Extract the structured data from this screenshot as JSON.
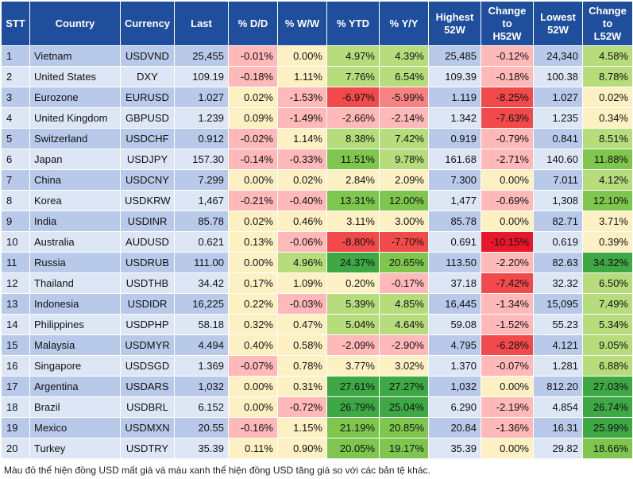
{
  "headers": [
    "STT",
    "Country",
    "Currency",
    "Last",
    "% D/D",
    "% W/W",
    "% YTD",
    "% Y/Y",
    "Highest\n52W",
    "Change\nto\nH52W",
    "Lowest\n52W",
    "Change\nto\nL52W"
  ],
  "colors": {
    "header_bg": "#1f4e9c",
    "row_odd": "#b8c9ea",
    "row_even": "#dce6f5",
    "neg_light": "#ffb9b9",
    "neg_mid": "#f88282",
    "neg_strong": "#f24a4a",
    "neg_deep": "#e8182a",
    "pos_light": "#fdf1c4",
    "pos_mid": "#b7dc7c",
    "pos_strong": "#7fc64e",
    "pos_deep": "#3ea844"
  },
  "rows": [
    [
      "1",
      "Vietnam",
      "USDVND",
      "25,455",
      "-0.01%",
      "0.00%",
      "4.97%",
      "4.39%",
      "25,485",
      "-0.12%",
      "24,340",
      "4.58%"
    ],
    [
      "2",
      "United States",
      "DXY",
      "109.19",
      "-0.18%",
      "1.11%",
      "7.76%",
      "6.54%",
      "109.39",
      "-0.18%",
      "100.38",
      "8.78%"
    ],
    [
      "3",
      "Eurozone",
      "EURUSD",
      "1.027",
      "0.02%",
      "-1.53%",
      "-6.97%",
      "-5.99%",
      "1.119",
      "-8.25%",
      "1.027",
      "0.02%"
    ],
    [
      "4",
      "United Kingdom",
      "GBPUSD",
      "1.239",
      "0.09%",
      "-1.49%",
      "-2.66%",
      "-2.14%",
      "1.342",
      "-7.63%",
      "1.235",
      "0.34%"
    ],
    [
      "5",
      "Switzerland",
      "USDCHF",
      "0.912",
      "-0.02%",
      "1.14%",
      "8.38%",
      "7.42%",
      "0.919",
      "-0.79%",
      "0.841",
      "8.51%"
    ],
    [
      "6",
      "Japan",
      "USDJPY",
      "157.30",
      "-0.14%",
      "-0.33%",
      "11.51%",
      "9.78%",
      "161.68",
      "-2.71%",
      "140.60",
      "11.88%"
    ],
    [
      "7",
      "China",
      "USDCNY",
      "7.299",
      "0.00%",
      "0.02%",
      "2.84%",
      "2.09%",
      "7.300",
      "0.00%",
      "7.011",
      "4.12%"
    ],
    [
      "8",
      "Korea",
      "USDKRW",
      "1,467",
      "-0.21%",
      "-0.40%",
      "13.31%",
      "12.00%",
      "1,477",
      "-0.69%",
      "1,308",
      "12.10%"
    ],
    [
      "9",
      "India",
      "USDINR",
      "85.78",
      "0.02%",
      "0.46%",
      "3.11%",
      "3.00%",
      "85.78",
      "0.00%",
      "82.71",
      "3.71%"
    ],
    [
      "10",
      "Australia",
      "AUDUSD",
      "0.621",
      "0.13%",
      "-0.06%",
      "-8.80%",
      "-7.70%",
      "0.691",
      "-10.15%",
      "0.619",
      "0.39%"
    ],
    [
      "11",
      "Russia",
      "USDRUB",
      "111.00",
      "0.00%",
      "4.96%",
      "24.37%",
      "20.65%",
      "113.50",
      "-2.20%",
      "82.63",
      "34.32%"
    ],
    [
      "12",
      "Thailand",
      "USDTHB",
      "34.42",
      "0.17%",
      "1.09%",
      "0.20%",
      "-0.17%",
      "37.18",
      "-7.42%",
      "32.32",
      "6.50%"
    ],
    [
      "13",
      "Indonesia",
      "USDIDR",
      "16,225",
      "0.22%",
      "-0.03%",
      "5.39%",
      "4.85%",
      "16,445",
      "-1.34%",
      "15,095",
      "7.49%"
    ],
    [
      "14",
      "Philippines",
      "USDPHP",
      "58.18",
      "0.32%",
      "0.47%",
      "5.04%",
      "4.64%",
      "59.08",
      "-1.52%",
      "55.23",
      "5.34%"
    ],
    [
      "15",
      "Malaysia",
      "USDMYR",
      "4.494",
      "0.40%",
      "0.58%",
      "-2.09%",
      "-2.90%",
      "4.795",
      "-6.28%",
      "4.121",
      "9.05%"
    ],
    [
      "16",
      "Singapore",
      "USDSGD",
      "1.369",
      "-0.07%",
      "0.78%",
      "3.77%",
      "3.02%",
      "1.370",
      "-0.07%",
      "1.281",
      "6.88%"
    ],
    [
      "17",
      "Argentina",
      "USDARS",
      "1,032",
      "0.00%",
      "0.31%",
      "27.61%",
      "27.27%",
      "1,032",
      "0.00%",
      "812.20",
      "27.03%"
    ],
    [
      "18",
      "Brazil",
      "USDBRL",
      "6.152",
      "0.00%",
      "-0.72%",
      "26.79%",
      "25.04%",
      "6.290",
      "-2.19%",
      "4.854",
      "26.74%"
    ],
    [
      "19",
      "Mexico",
      "USDMXN",
      "20.55",
      "-0.16%",
      "1.15%",
      "21.19%",
      "20.85%",
      "20.84",
      "-1.36%",
      "16.31",
      "25.99%"
    ],
    [
      "20",
      "Turkey",
      "USDTRY",
      "35.39",
      "0.11%",
      "0.90%",
      "20.05%",
      "19.17%",
      "35.39",
      "0.00%",
      "29.82",
      "18.66%"
    ]
  ],
  "footnote": "Màu đỏ thể hiện đồng USD mất giá và màu xanh thể hiện đồng USD tăng giá so với các bản tệ khác."
}
